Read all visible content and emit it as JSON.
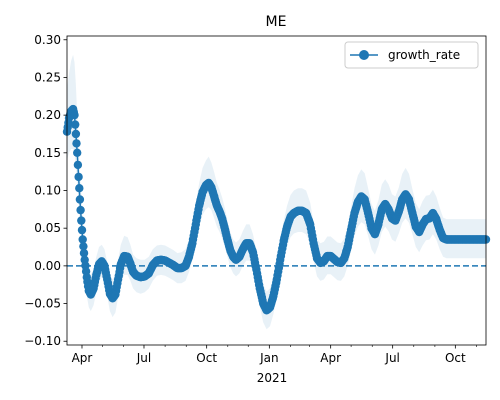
{
  "chart_data": {
    "type": "line",
    "title": "ME",
    "xlabel": "2021",
    "ylabel": "",
    "ylim": [
      -0.105,
      0.305
    ],
    "xlim": [
      "2020-03-10",
      "2021-11-15"
    ],
    "y_ticks": [
      -0.1,
      -0.05,
      0.0,
      0.05,
      0.1,
      0.15,
      0.2,
      0.25,
      0.3
    ],
    "y_tick_labels": [
      "−0.10",
      "−0.05",
      "0.00",
      "0.05",
      "0.10",
      "0.15",
      "0.20",
      "0.25",
      "0.30"
    ],
    "x_major_ticks": [
      {
        "date": "2020-04-01",
        "label": "Apr"
      },
      {
        "date": "2020-07-01",
        "label": "Jul"
      },
      {
        "date": "2020-10-01",
        "label": "Oct"
      },
      {
        "date": "2021-01-01",
        "label": "Jan"
      },
      {
        "date": "2021-04-01",
        "label": "Apr"
      },
      {
        "date": "2021-07-01",
        "label": "Jul"
      },
      {
        "date": "2021-10-01",
        "label": "Oct"
      }
    ],
    "x_minor_ticks": [
      "2020-05-01",
      "2020-06-01",
      "2020-08-01",
      "2020-09-01",
      "2020-11-01",
      "2020-12-01",
      "2021-02-01",
      "2021-03-01",
      "2021-05-01",
      "2021-06-01",
      "2021-08-01",
      "2021-09-01",
      "2021-11-01"
    ],
    "reference_line": {
      "y": 0,
      "style": "dashed"
    },
    "legend": {
      "position": "top-right"
    },
    "series": [
      {
        "name": "growth_rate",
        "color": "#1f77b4",
        "band_color": "#1f77b4",
        "points": [
          {
            "x": "2020-03-10",
            "y": 0.178,
            "lo": 0.14,
            "hi": 0.235
          },
          {
            "x": "2020-03-13",
            "y": 0.196,
            "lo": 0.15,
            "hi": 0.255
          },
          {
            "x": "2020-03-16",
            "y": 0.205,
            "lo": 0.155,
            "hi": 0.272
          },
          {
            "x": "2020-03-19",
            "y": 0.208,
            "lo": 0.155,
            "hi": 0.28
          },
          {
            "x": "2020-03-21",
            "y": 0.2,
            "lo": 0.15,
            "hi": 0.27
          },
          {
            "x": "2020-03-23",
            "y": 0.175,
            "lo": 0.13,
            "hi": 0.24
          },
          {
            "x": "2020-03-25",
            "y": 0.15,
            "lo": 0.11,
            "hi": 0.2
          },
          {
            "x": "2020-03-27",
            "y": 0.118,
            "lo": 0.085,
            "hi": 0.16
          },
          {
            "x": "2020-03-29",
            "y": 0.088,
            "lo": 0.055,
            "hi": 0.125
          },
          {
            "x": "2020-03-31",
            "y": 0.06,
            "lo": 0.03,
            "hi": 0.095
          },
          {
            "x": "2020-04-02",
            "y": 0.035,
            "lo": 0.005,
            "hi": 0.065
          },
          {
            "x": "2020-04-05",
            "y": 0.008,
            "lo": -0.02,
            "hi": 0.035
          },
          {
            "x": "2020-04-08",
            "y": -0.015,
            "lo": -0.04,
            "hi": 0.012
          },
          {
            "x": "2020-04-11",
            "y": -0.033,
            "lo": -0.055,
            "hi": -0.008
          },
          {
            "x": "2020-04-14",
            "y": -0.038,
            "lo": -0.06,
            "hi": -0.012
          },
          {
            "x": "2020-04-18",
            "y": -0.03,
            "lo": -0.052,
            "hi": -0.005
          },
          {
            "x": "2020-04-22",
            "y": -0.012,
            "lo": -0.035,
            "hi": 0.012
          },
          {
            "x": "2020-04-26",
            "y": 0.002,
            "lo": -0.02,
            "hi": 0.025
          },
          {
            "x": "2020-04-30",
            "y": 0.006,
            "lo": -0.015,
            "hi": 0.028
          },
          {
            "x": "2020-05-04",
            "y": 0.0,
            "lo": -0.022,
            "hi": 0.022
          },
          {
            "x": "2020-05-08",
            "y": -0.018,
            "lo": -0.04,
            "hi": 0.005
          },
          {
            "x": "2020-05-12",
            "y": -0.037,
            "lo": -0.06,
            "hi": -0.012
          },
          {
            "x": "2020-05-16",
            "y": -0.043,
            "lo": -0.068,
            "hi": -0.018
          },
          {
            "x": "2020-05-20",
            "y": -0.038,
            "lo": -0.062,
            "hi": -0.012
          },
          {
            "x": "2020-05-24",
            "y": -0.018,
            "lo": -0.042,
            "hi": 0.008
          },
          {
            "x": "2020-05-28",
            "y": 0.002,
            "lo": -0.022,
            "hi": 0.028
          },
          {
            "x": "2020-06-02",
            "y": 0.013,
            "lo": -0.012,
            "hi": 0.04
          },
          {
            "x": "2020-06-07",
            "y": 0.012,
            "lo": -0.012,
            "hi": 0.038
          },
          {
            "x": "2020-06-11",
            "y": 0.003,
            "lo": -0.02,
            "hi": 0.028
          },
          {
            "x": "2020-06-15",
            "y": -0.008,
            "lo": -0.03,
            "hi": 0.015
          },
          {
            "x": "2020-06-20",
            "y": -0.013,
            "lo": -0.035,
            "hi": 0.01
          },
          {
            "x": "2020-06-26",
            "y": -0.015,
            "lo": -0.037,
            "hi": 0.008
          },
          {
            "x": "2020-07-02",
            "y": -0.014,
            "lo": -0.035,
            "hi": 0.008
          },
          {
            "x": "2020-07-08",
            "y": -0.01,
            "lo": -0.03,
            "hi": 0.012
          },
          {
            "x": "2020-07-14",
            "y": 0.001,
            "lo": -0.02,
            "hi": 0.022
          },
          {
            "x": "2020-07-20",
            "y": 0.007,
            "lo": -0.013,
            "hi": 0.027
          },
          {
            "x": "2020-07-26",
            "y": 0.008,
            "lo": -0.012,
            "hi": 0.028
          },
          {
            "x": "2020-08-01",
            "y": 0.007,
            "lo": -0.013,
            "hi": 0.027
          },
          {
            "x": "2020-08-07",
            "y": 0.004,
            "lo": -0.016,
            "hi": 0.024
          },
          {
            "x": "2020-08-13",
            "y": 0.001,
            "lo": -0.019,
            "hi": 0.021
          },
          {
            "x": "2020-08-19",
            "y": -0.003,
            "lo": -0.023,
            "hi": 0.017
          },
          {
            "x": "2020-08-25",
            "y": -0.003,
            "lo": -0.023,
            "hi": 0.018
          },
          {
            "x": "2020-08-31",
            "y": 0.0,
            "lo": -0.02,
            "hi": 0.022
          },
          {
            "x": "2020-09-05",
            "y": 0.012,
            "lo": -0.008,
            "hi": 0.035
          },
          {
            "x": "2020-09-10",
            "y": 0.03,
            "lo": 0.008,
            "hi": 0.055
          },
          {
            "x": "2020-09-15",
            "y": 0.055,
            "lo": 0.03,
            "hi": 0.082
          },
          {
            "x": "2020-09-20",
            "y": 0.08,
            "lo": 0.052,
            "hi": 0.11
          },
          {
            "x": "2020-09-25",
            "y": 0.098,
            "lo": 0.068,
            "hi": 0.13
          },
          {
            "x": "2020-09-30",
            "y": 0.107,
            "lo": 0.075,
            "hi": 0.14
          },
          {
            "x": "2020-10-04",
            "y": 0.11,
            "lo": 0.078,
            "hi": 0.145
          },
          {
            "x": "2020-10-08",
            "y": 0.104,
            "lo": 0.074,
            "hi": 0.137
          },
          {
            "x": "2020-10-12",
            "y": 0.092,
            "lo": 0.063,
            "hi": 0.124
          },
          {
            "x": "2020-10-16",
            "y": 0.08,
            "lo": 0.052,
            "hi": 0.11
          },
          {
            "x": "2020-10-20",
            "y": 0.072,
            "lo": 0.045,
            "hi": 0.101
          },
          {
            "x": "2020-10-24",
            "y": 0.062,
            "lo": 0.036,
            "hi": 0.09
          },
          {
            "x": "2020-10-28",
            "y": 0.048,
            "lo": 0.024,
            "hi": 0.075
          },
          {
            "x": "2020-11-01",
            "y": 0.033,
            "lo": 0.01,
            "hi": 0.058
          },
          {
            "x": "2020-11-05",
            "y": 0.02,
            "lo": -0.002,
            "hi": 0.044
          },
          {
            "x": "2020-11-09",
            "y": 0.012,
            "lo": -0.01,
            "hi": 0.035
          },
          {
            "x": "2020-11-13",
            "y": 0.008,
            "lo": -0.014,
            "hi": 0.031
          },
          {
            "x": "2020-11-18",
            "y": 0.012,
            "lo": -0.01,
            "hi": 0.035
          },
          {
            "x": "2020-11-23",
            "y": 0.022,
            "lo": 0.0,
            "hi": 0.046
          },
          {
            "x": "2020-11-28",
            "y": 0.03,
            "lo": 0.007,
            "hi": 0.055
          },
          {
            "x": "2020-12-03",
            "y": 0.03,
            "lo": 0.007,
            "hi": 0.055
          },
          {
            "x": "2020-12-08",
            "y": 0.018,
            "lo": -0.005,
            "hi": 0.042
          },
          {
            "x": "2020-12-13",
            "y": -0.005,
            "lo": -0.028,
            "hi": 0.02
          },
          {
            "x": "2020-12-18",
            "y": -0.03,
            "lo": -0.054,
            "hi": -0.006
          },
          {
            "x": "2020-12-23",
            "y": -0.05,
            "lo": -0.075,
            "hi": -0.025
          },
          {
            "x": "2020-12-28",
            "y": -0.059,
            "lo": -0.084,
            "hi": -0.034
          },
          {
            "x": "2021-01-02",
            "y": -0.055,
            "lo": -0.08,
            "hi": -0.03
          },
          {
            "x": "2021-01-07",
            "y": -0.04,
            "lo": -0.064,
            "hi": -0.015
          },
          {
            "x": "2021-01-12",
            "y": -0.018,
            "lo": -0.042,
            "hi": 0.007
          },
          {
            "x": "2021-01-17",
            "y": 0.008,
            "lo": -0.016,
            "hi": 0.034
          },
          {
            "x": "2021-01-22",
            "y": 0.033,
            "lo": 0.008,
            "hi": 0.06
          },
          {
            "x": "2021-01-27",
            "y": 0.052,
            "lo": 0.026,
            "hi": 0.08
          },
          {
            "x": "2021-02-01",
            "y": 0.065,
            "lo": 0.038,
            "hi": 0.094
          },
          {
            "x": "2021-02-06",
            "y": 0.07,
            "lo": 0.043,
            "hi": 0.1
          },
          {
            "x": "2021-02-12",
            "y": 0.073,
            "lo": 0.045,
            "hi": 0.103
          },
          {
            "x": "2021-02-18",
            "y": 0.073,
            "lo": 0.045,
            "hi": 0.103
          },
          {
            "x": "2021-02-24",
            "y": 0.07,
            "lo": 0.042,
            "hi": 0.1
          },
          {
            "x": "2021-03-02",
            "y": 0.055,
            "lo": 0.03,
            "hi": 0.084
          },
          {
            "x": "2021-03-07",
            "y": 0.03,
            "lo": 0.006,
            "hi": 0.057
          },
          {
            "x": "2021-03-12",
            "y": 0.01,
            "lo": -0.014,
            "hi": 0.036
          },
          {
            "x": "2021-03-17",
            "y": 0.004,
            "lo": -0.02,
            "hi": 0.03
          },
          {
            "x": "2021-03-22",
            "y": 0.006,
            "lo": -0.018,
            "hi": 0.032
          },
          {
            "x": "2021-03-27",
            "y": 0.013,
            "lo": -0.011,
            "hi": 0.039
          },
          {
            "x": "2021-04-01",
            "y": 0.013,
            "lo": -0.011,
            "hi": 0.039
          },
          {
            "x": "2021-04-06",
            "y": 0.009,
            "lo": -0.015,
            "hi": 0.035
          },
          {
            "x": "2021-04-11",
            "y": 0.005,
            "lo": -0.019,
            "hi": 0.031
          },
          {
            "x": "2021-04-16",
            "y": 0.004,
            "lo": -0.02,
            "hi": 0.03
          },
          {
            "x": "2021-04-21",
            "y": 0.01,
            "lo": -0.014,
            "hi": 0.036
          },
          {
            "x": "2021-04-26",
            "y": 0.025,
            "lo": 0.0,
            "hi": 0.053
          },
          {
            "x": "2021-05-01",
            "y": 0.048,
            "lo": 0.02,
            "hi": 0.078
          },
          {
            "x": "2021-05-06",
            "y": 0.07,
            "lo": 0.04,
            "hi": 0.103
          },
          {
            "x": "2021-05-11",
            "y": 0.085,
            "lo": 0.052,
            "hi": 0.12
          },
          {
            "x": "2021-05-16",
            "y": 0.092,
            "lo": 0.058,
            "hi": 0.128
          },
          {
            "x": "2021-05-21",
            "y": 0.088,
            "lo": 0.055,
            "hi": 0.123
          },
          {
            "x": "2021-05-26",
            "y": 0.07,
            "lo": 0.04,
            "hi": 0.103
          },
          {
            "x": "2021-05-31",
            "y": 0.05,
            "lo": 0.022,
            "hi": 0.082
          },
          {
            "x": "2021-06-05",
            "y": 0.042,
            "lo": 0.015,
            "hi": 0.073
          },
          {
            "x": "2021-06-10",
            "y": 0.055,
            "lo": 0.027,
            "hi": 0.087
          },
          {
            "x": "2021-06-15",
            "y": 0.075,
            "lo": 0.045,
            "hi": 0.108
          },
          {
            "x": "2021-06-20",
            "y": 0.082,
            "lo": 0.052,
            "hi": 0.115
          },
          {
            "x": "2021-06-25",
            "y": 0.075,
            "lo": 0.046,
            "hi": 0.108
          },
          {
            "x": "2021-06-30",
            "y": 0.063,
            "lo": 0.035,
            "hi": 0.095
          },
          {
            "x": "2021-07-05",
            "y": 0.06,
            "lo": 0.032,
            "hi": 0.092
          },
          {
            "x": "2021-07-10",
            "y": 0.072,
            "lo": 0.043,
            "hi": 0.104
          },
          {
            "x": "2021-07-15",
            "y": 0.088,
            "lo": 0.057,
            "hi": 0.122
          },
          {
            "x": "2021-07-20",
            "y": 0.095,
            "lo": 0.063,
            "hi": 0.13
          },
          {
            "x": "2021-07-25",
            "y": 0.088,
            "lo": 0.057,
            "hi": 0.122
          },
          {
            "x": "2021-07-30",
            "y": 0.07,
            "lo": 0.042,
            "hi": 0.102
          },
          {
            "x": "2021-08-04",
            "y": 0.052,
            "lo": 0.025,
            "hi": 0.083
          },
          {
            "x": "2021-08-09",
            "y": 0.045,
            "lo": 0.018,
            "hi": 0.075
          },
          {
            "x": "2021-08-14",
            "y": 0.055,
            "lo": 0.027,
            "hi": 0.086
          },
          {
            "x": "2021-08-19",
            "y": 0.062,
            "lo": 0.034,
            "hi": 0.093
          },
          {
            "x": "2021-08-24",
            "y": 0.063,
            "lo": 0.035,
            "hi": 0.094
          },
          {
            "x": "2021-08-29",
            "y": 0.07,
            "lo": 0.042,
            "hi": 0.101
          },
          {
            "x": "2021-09-03",
            "y": 0.062,
            "lo": 0.035,
            "hi": 0.092
          },
          {
            "x": "2021-09-08",
            "y": 0.048,
            "lo": 0.022,
            "hi": 0.077
          },
          {
            "x": "2021-09-13",
            "y": 0.037,
            "lo": 0.012,
            "hi": 0.064
          },
          {
            "x": "2021-09-18",
            "y": 0.035,
            "lo": 0.01,
            "hi": 0.062
          },
          {
            "x": "2021-09-25",
            "y": 0.035,
            "lo": 0.01,
            "hi": 0.062
          },
          {
            "x": "2021-10-05",
            "y": 0.035,
            "lo": 0.01,
            "hi": 0.062
          },
          {
            "x": "2021-10-15",
            "y": 0.035,
            "lo": 0.01,
            "hi": 0.062
          },
          {
            "x": "2021-10-25",
            "y": 0.035,
            "lo": 0.01,
            "hi": 0.062
          },
          {
            "x": "2021-11-05",
            "y": 0.035,
            "lo": 0.01,
            "hi": 0.062
          },
          {
            "x": "2021-11-15",
            "y": 0.035,
            "lo": 0.01,
            "hi": 0.062
          }
        ]
      }
    ]
  }
}
